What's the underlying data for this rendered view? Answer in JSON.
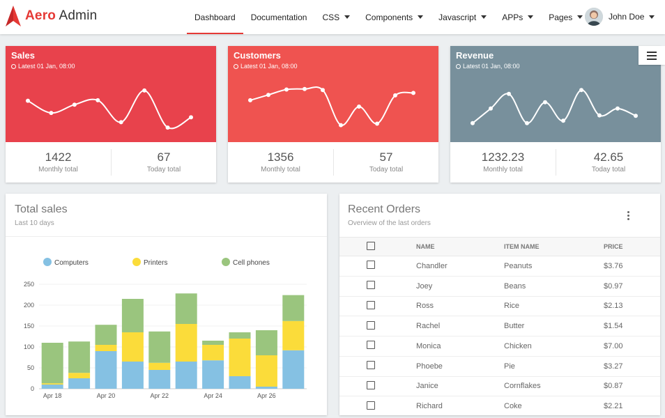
{
  "brand": {
    "part1": "Aero",
    "part2": "Admin"
  },
  "nav": {
    "items": [
      {
        "label": "Dashboard",
        "active": true,
        "caret": false
      },
      {
        "label": "Documentation",
        "active": false,
        "caret": false
      },
      {
        "label": "CSS",
        "active": false,
        "caret": true
      },
      {
        "label": "Components",
        "active": false,
        "caret": true
      },
      {
        "label": "Javascript",
        "active": false,
        "caret": true
      },
      {
        "label": "APPs",
        "active": false,
        "caret": true
      },
      {
        "label": "Pages",
        "active": false,
        "caret": true
      }
    ],
    "user": "John Doe"
  },
  "stats": [
    {
      "title": "Sales",
      "subtitle": "Latest 01 Jan, 08:00",
      "color": "#e8424c",
      "monthly_value": "1422",
      "monthly_label": "Monthly total",
      "today_value": "67",
      "today_label": "Today total",
      "points": [
        62,
        37,
        54,
        63,
        18,
        83,
        7,
        28
      ]
    },
    {
      "title": "Customers",
      "subtitle": "Latest 01 Jan, 08:00",
      "color": "#ef5350",
      "monthly_value": "1356",
      "monthly_label": "Monthly total",
      "today_value": "57",
      "today_label": "Today total",
      "points": [
        63,
        74,
        85,
        86,
        84,
        12,
        50,
        15,
        73,
        78
      ]
    },
    {
      "title": "Revenue",
      "subtitle": "Latest 01 Jan, 08:00",
      "color": "#78909c",
      "monthly_value": "1232.23",
      "monthly_label": "Monthly total",
      "today_value": "42.65",
      "today_label": "Today total",
      "points": [
        16,
        46,
        76,
        16,
        59,
        21,
        84,
        32,
        46,
        31
      ]
    }
  ],
  "total_sales": {
    "title": "Total sales",
    "subtitle": "Last 10 days"
  },
  "chart_data": {
    "type": "bar",
    "stacked": true,
    "categories": [
      "Apr 18",
      "Apr 19",
      "Apr 20",
      "Apr 21",
      "Apr 22",
      "Apr 23",
      "Apr 24",
      "Apr 25",
      "Apr 26",
      "Apr 27"
    ],
    "x_tick_labels": [
      "Apr 18",
      "Apr 20",
      "Apr 22",
      "Apr 24",
      "Apr 26"
    ],
    "series": [
      {
        "name": "Computers",
        "color": "#85c1e3",
        "values": [
          10,
          25,
          90,
          65,
          45,
          65,
          68,
          30,
          5,
          92
        ]
      },
      {
        "name": "Printers",
        "color": "#fbdc3a",
        "values": [
          3,
          13,
          15,
          70,
          17,
          90,
          37,
          90,
          75,
          70
        ]
      },
      {
        "name": "Cell phones",
        "color": "#9ac57e",
        "values": [
          97,
          75,
          48,
          80,
          75,
          73,
          10,
          15,
          60,
          62
        ]
      }
    ],
    "ylim": [
      0,
      250
    ],
    "yticks": [
      0,
      50,
      100,
      150,
      200,
      250
    ],
    "legend": "top"
  },
  "recent_orders": {
    "title": "Recent Orders",
    "subtitle": "Overview of the last orders",
    "columns": [
      "NAME",
      "ITEM NAME",
      "PRICE"
    ],
    "rows": [
      {
        "name": "Chandler",
        "item": "Peanuts",
        "price": "$3.76"
      },
      {
        "name": "Joey",
        "item": "Beans",
        "price": "$0.97"
      },
      {
        "name": "Ross",
        "item": "Rice",
        "price": "$2.13"
      },
      {
        "name": "Rachel",
        "item": "Butter",
        "price": "$1.54"
      },
      {
        "name": "Monica",
        "item": "Chicken",
        "price": "$7.00"
      },
      {
        "name": "Phoebe",
        "item": "Pie",
        "price": "$3.27"
      },
      {
        "name": "Janice",
        "item": "Cornflakes",
        "price": "$0.87"
      },
      {
        "name": "Richard",
        "item": "Coke",
        "price": "$2.21"
      }
    ]
  }
}
